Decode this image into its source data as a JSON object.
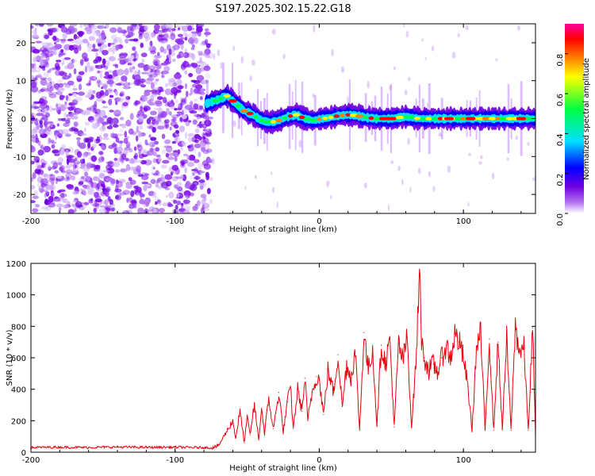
{
  "chart_data": [
    {
      "type": "heatmap",
      "title": "S197.2025.302.15.22.G18",
      "xlabel": "Height of straight line (km)",
      "ylabel": "Frequency (Hz)",
      "xlim": [
        -200,
        150
      ],
      "ylim": [
        -25,
        25
      ],
      "x_ticks": [
        -200,
        -100,
        0,
        100
      ],
      "x_tick_labels": [
        "-200",
        "-100",
        "0",
        "100"
      ],
      "y_ticks": [
        -20,
        -10,
        0,
        10,
        20
      ],
      "y_tick_labels": [
        "-20",
        "-10",
        "0",
        "10",
        "20"
      ],
      "noise_region_x": [
        -200,
        -75
      ],
      "signal_track": {
        "x": [
          -78,
          -70,
          -64,
          -58,
          -52,
          -46,
          -40,
          -34,
          -28,
          -22,
          -16,
          -10,
          -4,
          2,
          8,
          14,
          20,
          26,
          32,
          40,
          50,
          60,
          70,
          80,
          90,
          100,
          110,
          120,
          130,
          140,
          150
        ],
        "y": [
          4,
          5,
          6,
          4,
          2,
          1,
          -0.5,
          -1,
          -0.5,
          0.5,
          1,
          0,
          -0.5,
          0,
          0.3,
          0.8,
          1,
          0.8,
          0.3,
          0,
          0,
          0.5,
          0,
          0,
          0,
          0,
          0,
          0,
          0,
          0,
          0
        ]
      },
      "colorbar": {
        "label": "Normalized spectral amplitude",
        "range": [
          0.0,
          0.95
        ],
        "ticks": [
          0.0,
          0.2,
          0.4,
          0.6,
          0.8
        ],
        "tick_labels": [
          "0.0",
          "0.2",
          "0.4",
          "0.6",
          "0.8"
        ],
        "colors": [
          "#ffffff",
          "#7000e0",
          "#0000ff",
          "#00e0ff",
          "#00ff40",
          "#ffff00",
          "#ff8000",
          "#ff0000",
          "#ff00a0"
        ]
      }
    },
    {
      "type": "line",
      "xlabel": "Height of straight line (km)",
      "ylabel": "SNR (10 * v/v)",
      "xlim": [
        -200,
        150
      ],
      "ylim": [
        0,
        1200
      ],
      "x_ticks": [
        -200,
        -100,
        0,
        100
      ],
      "x_tick_labels": [
        "-200",
        "-100",
        "0",
        "100"
      ],
      "y_ticks": [
        0,
        200,
        400,
        600,
        800,
        1000,
        1200
      ],
      "y_tick_labels": [
        "0",
        "200",
        "400",
        "600",
        "800",
        "1000",
        "1200"
      ],
      "series": [
        {
          "name": "SNR",
          "color": "#e8000b",
          "x": [
            -200,
            -180,
            -160,
            -140,
            -120,
            -100,
            -90,
            -80,
            -75,
            -70,
            -65,
            -60,
            -58,
            -55,
            -52,
            -50,
            -48,
            -45,
            -42,
            -40,
            -38,
            -35,
            -32,
            -30,
            -28,
            -25,
            -22,
            -20,
            -18,
            -15,
            -12,
            -10,
            -8,
            -5,
            -2,
            0,
            3,
            6,
            10,
            13,
            16,
            19,
            22,
            25,
            28,
            31,
            34,
            37,
            40,
            43,
            46,
            49,
            52,
            55,
            58,
            61,
            64,
            67,
            70,
            71,
            73,
            76,
            79,
            82,
            85,
            88,
            91,
            94,
            97,
            100,
            103,
            106,
            109,
            112,
            115,
            118,
            121,
            124,
            127,
            130,
            133,
            136,
            139,
            142,
            145,
            148,
            150
          ],
          "y": [
            30,
            32,
            30,
            33,
            31,
            32,
            30,
            30,
            28,
            40,
            120,
            200,
            90,
            260,
            60,
            220,
            110,
            300,
            80,
            280,
            120,
            340,
            150,
            250,
            380,
            130,
            320,
            420,
            150,
            400,
            260,
            470,
            200,
            380,
            480,
            460,
            240,
            520,
            380,
            620,
            290,
            560,
            470,
            640,
            140,
            760,
            520,
            660,
            170,
            680,
            560,
            720,
            160,
            690,
            580,
            730,
            160,
            560,
            1200,
            680,
            600,
            520,
            560,
            510,
            600,
            680,
            590,
            750,
            700,
            600,
            420,
            140,
            650,
            760,
            140,
            720,
            140,
            700,
            150,
            720,
            140,
            800,
            640,
            660,
            140,
            790,
            100
          ]
        }
      ]
    }
  ]
}
